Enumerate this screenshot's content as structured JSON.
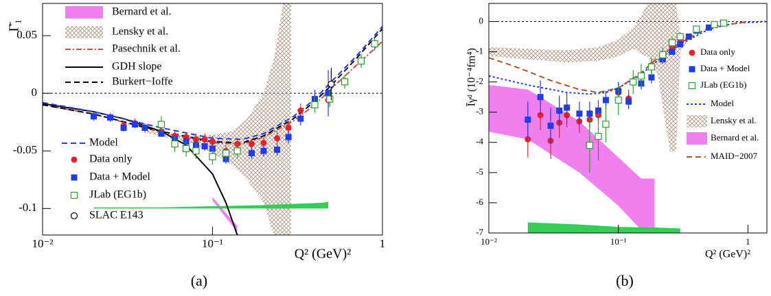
{
  "chart_data": [
    {
      "type": "scatter",
      "ylabel": "Γ̄₁",
      "xlabel": "Q² (GeV)²",
      "caption": "(a)",
      "xlog": true,
      "xlim": [
        0.01,
        1.0
      ],
      "ylim": [
        -0.123,
        0.078
      ],
      "xticks": [
        {
          "value": 0.01,
          "label": "10⁻²"
        },
        {
          "value": 0.1,
          "label": "10⁻¹"
        },
        1
      ],
      "yticks": [
        -0.1,
        -0.05,
        0,
        0.05
      ],
      "reference_line": 0,
      "series": [
        {
          "name": "Bernard et al.",
          "kind": "band",
          "color": "#f07ff0",
          "x": [
            0.1,
            0.12,
            0.14
          ],
          "upper": [
            -0.09,
            -0.104,
            -0.115
          ],
          "lower": [
            -0.093,
            -0.108,
            -0.12
          ]
        },
        {
          "name": "Lensky et al.",
          "kind": "band",
          "pattern": "hatch",
          "color": "#b08f7c",
          "x": [
            0.04,
            0.06,
            0.08,
            0.1,
            0.13,
            0.16,
            0.2,
            0.23,
            0.26,
            0.29
          ],
          "upper": [
            -0.032,
            -0.036,
            -0.037,
            -0.036,
            -0.033,
            -0.022,
            0.0,
            0.03,
            0.078,
            0.078
          ],
          "lower": [
            -0.034,
            -0.04,
            -0.045,
            -0.052,
            -0.062,
            -0.075,
            -0.095,
            -0.123,
            -0.123,
            -0.123
          ]
        },
        {
          "name": "Pasechnik et al.",
          "kind": "line",
          "dash": "dashdot",
          "color": "#c0504d",
          "x": [
            0.01,
            0.02,
            0.05,
            0.1,
            0.15,
            0.2,
            0.3,
            0.4,
            0.5,
            0.7,
            1.0
          ],
          "values": [
            -0.01,
            -0.018,
            -0.034,
            -0.043,
            -0.044,
            -0.038,
            -0.024,
            -0.01,
            0.004,
            0.024,
            0.045
          ]
        },
        {
          "name": "GDH slope",
          "kind": "line",
          "dash": "solid",
          "color": "#000000",
          "x": [
            0.01,
            0.02,
            0.03,
            0.05,
            0.07,
            0.1,
            0.12,
            0.14
          ],
          "values": [
            -0.009,
            -0.016,
            -0.022,
            -0.033,
            -0.045,
            -0.07,
            -0.095,
            -0.123
          ]
        },
        {
          "name": "Burkert−Ioffe",
          "kind": "line",
          "dash": "dashed",
          "color": "#000000",
          "x": [
            0.01,
            0.02,
            0.05,
            0.1,
            0.15,
            0.2,
            0.3,
            0.4,
            0.5,
            0.7,
            1.0
          ],
          "values": [
            -0.01,
            -0.018,
            -0.033,
            -0.042,
            -0.043,
            -0.037,
            -0.022,
            -0.007,
            0.007,
            0.03,
            0.056
          ]
        },
        {
          "name": "Model",
          "kind": "line",
          "dash": "dashed",
          "color": "#1f3ce6",
          "x": [
            0.01,
            0.02,
            0.05,
            0.1,
            0.15,
            0.2,
            0.3,
            0.4,
            0.5,
            0.7,
            1.0
          ],
          "values": [
            -0.008,
            -0.016,
            -0.03,
            -0.039,
            -0.04,
            -0.035,
            -0.02,
            -0.005,
            0.01,
            0.032,
            0.058
          ]
        },
        {
          "name": "Data only",
          "kind": "points",
          "marker": "circle",
          "color": "#e8202a",
          "x": [
            0.02,
            0.025,
            0.03,
            0.035,
            0.04,
            0.05,
            0.06,
            0.07,
            0.08,
            0.09,
            0.1,
            0.12,
            0.14,
            0.17,
            0.2,
            0.24,
            0.28,
            0.33,
            0.4,
            0.48
          ],
          "values": [
            -0.02,
            -0.021,
            -0.028,
            -0.026,
            -0.03,
            -0.033,
            -0.037,
            -0.038,
            -0.04,
            -0.04,
            -0.042,
            -0.05,
            -0.044,
            -0.044,
            -0.043,
            -0.039,
            -0.03,
            -0.015,
            -0.006,
            -0.006
          ],
          "errors": [
            0.004,
            0.004,
            0.004,
            0.004,
            0.004,
            0.004,
            0.004,
            0.004,
            0.005,
            0.005,
            0.005,
            0.005,
            0.005,
            0.005,
            0.005,
            0.006,
            0.006,
            0.006,
            0.007,
            0.007
          ]
        },
        {
          "name": "Data + Model",
          "kind": "points",
          "marker": "square",
          "color": "#1f3ce6",
          "x": [
            0.02,
            0.025,
            0.03,
            0.035,
            0.04,
            0.05,
            0.06,
            0.07,
            0.08,
            0.09,
            0.1,
            0.12,
            0.14,
            0.17,
            0.2,
            0.24,
            0.28,
            0.33,
            0.4,
            0.48
          ],
          "values": [
            -0.02,
            -0.021,
            -0.03,
            -0.027,
            -0.03,
            -0.035,
            -0.04,
            -0.042,
            -0.045,
            -0.046,
            -0.048,
            -0.057,
            -0.05,
            -0.052,
            -0.05,
            -0.049,
            -0.038,
            -0.022,
            -0.005,
            0.0
          ],
          "errors": [
            0.003,
            0.003,
            0.003,
            0.003,
            0.003,
            0.003,
            0.004,
            0.004,
            0.004,
            0.004,
            0.004,
            0.004,
            0.004,
            0.005,
            0.005,
            0.005,
            0.005,
            0.006,
            0.008,
            0.02
          ]
        },
        {
          "name": "JLab (EG1b)",
          "kind": "points",
          "marker": "open-square",
          "color": "#2aa02a",
          "x": [
            0.05,
            0.06,
            0.07,
            0.08,
            0.1,
            0.12,
            0.14,
            0.4,
            0.49,
            0.6,
            0.75,
            0.9
          ],
          "values": [
            -0.027,
            -0.044,
            -0.048,
            -0.05,
            -0.055,
            -0.052,
            -0.05,
            -0.01,
            -0.005,
            0.01,
            0.028,
            0.043
          ],
          "errors": [
            0.007,
            0.007,
            0.007,
            0.007,
            0.007,
            0.007,
            0.007,
            0.007,
            0.007,
            0.006,
            0.006,
            0.006
          ]
        },
        {
          "name": "SLAC E143",
          "kind": "points",
          "marker": "open-circle",
          "color": "#000000",
          "x": [
            0.5
          ],
          "values": [
            0.008
          ],
          "errors": [
            0.014
          ]
        },
        {
          "kind": "band",
          "color": "#33cc55",
          "x": [
            0.02,
            0.05,
            0.1,
            0.2,
            0.45,
            0.48
          ],
          "upper": [
            -0.099,
            -0.099,
            -0.098,
            -0.097,
            -0.095,
            -0.094
          ],
          "lower": [
            -0.1,
            -0.1,
            -0.1,
            -0.1,
            -0.1,
            -0.1
          ]
        }
      ]
    },
    {
      "type": "scatter",
      "ylabel": "Īγᵈ (10⁻⁴fm⁴)",
      "xlabel": "Q² (GeV)²",
      "caption": "(b)",
      "xlog": true,
      "xlim": [
        0.01,
        1.4
      ],
      "ylim": [
        -7,
        0.6
      ],
      "xticks": [
        {
          "value": 0.01,
          "label": "10⁻²"
        },
        {
          "value": 0.1,
          "label": "10⁻¹"
        },
        1
      ],
      "yticks": [
        -7,
        -6,
        -5,
        -4,
        -3,
        -2,
        -1,
        0
      ],
      "reference_line": 0,
      "series": [
        {
          "name": "Data only",
          "kind": "points",
          "marker": "circle",
          "color": "#e8202a",
          "x": [
            0.02,
            0.025,
            0.03,
            0.035,
            0.04,
            0.05,
            0.06,
            0.07,
            0.1,
            0.12,
            0.18,
            0.22,
            0.26,
            0.3
          ],
          "values": [
            -3.9,
            -3.1,
            -3.95,
            -3.35,
            -3.1,
            -3.3,
            -3.25,
            -3.1,
            -2.35,
            -2.55,
            -1.45,
            -1.1,
            -0.85,
            -0.6
          ],
          "errors": [
            0.6,
            0.5,
            0.6,
            0.5,
            0.4,
            0.4,
            0.35,
            0.3,
            0.3,
            0.3,
            0.2,
            0.2,
            0.15,
            0.1
          ]
        },
        {
          "name": "Data + Model",
          "kind": "points",
          "marker": "square",
          "color": "#1f3ce6",
          "x": [
            0.02,
            0.025,
            0.03,
            0.035,
            0.04,
            0.05,
            0.06,
            0.07,
            0.08,
            0.1,
            0.12,
            0.15,
            0.18,
            0.22,
            0.26,
            0.3,
            0.35,
            0.4,
            0.5
          ],
          "values": [
            -3.25,
            -2.5,
            -3.45,
            -2.95,
            -2.85,
            -3.05,
            -3.05,
            -2.95,
            -2.6,
            -2.3,
            -2.65,
            -2.05,
            -1.85,
            -1.25,
            -1.0,
            -0.75,
            -0.5,
            -0.3,
            -0.2
          ],
          "errors": [
            0.6,
            0.55,
            0.6,
            0.5,
            0.5,
            0.4,
            0.4,
            0.35,
            0.3,
            0.3,
            0.25,
            0.2,
            0.2,
            0.15,
            0.1,
            0.1,
            0.1,
            0.1,
            0.1
          ]
        },
        {
          "name": "JLab (EG1b)",
          "kind": "points",
          "marker": "open-square",
          "color": "#2aa02a",
          "x": [
            0.06,
            0.07,
            0.08,
            0.1,
            0.13,
            0.15,
            0.18,
            0.22,
            0.26,
            0.3,
            0.4,
            0.55,
            0.65
          ],
          "values": [
            -4.1,
            -3.8,
            -3.4,
            -2.6,
            -2.0,
            -1.8,
            -1.5,
            -1.1,
            -0.7,
            -0.5,
            -0.25,
            -0.1,
            -0.05
          ],
          "errors": [
            0.9,
            0.8,
            0.6,
            0.5,
            0.4,
            0.4,
            0.3,
            0.25,
            0.2,
            0.15,
            0.1,
            0.05,
            0.05
          ]
        },
        {
          "name": "Model",
          "kind": "line",
          "dash": "dotted",
          "color": "#1f3ce6",
          "x": [
            0.01,
            0.02,
            0.04,
            0.06,
            0.08,
            0.1,
            0.15,
            0.2,
            0.3,
            0.5,
            0.8,
            1.4
          ],
          "values": [
            -1.8,
            -2.1,
            -2.35,
            -2.4,
            -2.35,
            -2.2,
            -1.75,
            -1.3,
            -0.75,
            -0.25,
            -0.05,
            0
          ]
        },
        {
          "name": "Lensky et al.",
          "kind": "band",
          "pattern": "hatch",
          "color": "#b08f7c",
          "x": [
            0.01,
            0.02,
            0.04,
            0.07,
            0.1,
            0.13,
            0.17,
            0.2,
            0.22,
            0.25,
            0.28,
            0.3,
            0.35
          ],
          "upper": [
            -0.85,
            -0.9,
            -0.95,
            -0.85,
            -0.6,
            -0.2,
            0.6,
            0.6,
            0.6,
            0.6,
            0.6,
            -0.5,
            -0.5
          ],
          "lower": [
            -1.15,
            -1.25,
            -1.35,
            -1.3,
            -1.15,
            -0.9,
            -1.2,
            -1.7,
            -2.8,
            -4.3,
            -4.3,
            -1.0,
            -0.6
          ]
        },
        {
          "name": "Bernard et al.",
          "kind": "band",
          "color": "#f07ff0",
          "x": [
            0.01,
            0.02,
            0.05,
            0.1,
            0.15,
            0.19
          ],
          "upper": [
            -2.1,
            -2.25,
            -3.3,
            -4.5,
            -5.2,
            -5.2
          ],
          "lower": [
            -3.65,
            -3.9,
            -5.0,
            -6.1,
            -6.9,
            -6.95
          ]
        },
        {
          "name": "MAID−2007",
          "kind": "line",
          "dash": "dashed",
          "color": "#b5502a",
          "x": [
            0.01,
            0.015,
            0.02,
            0.03,
            0.05,
            0.07,
            0.1,
            0.15,
            0.2,
            0.3,
            0.5,
            1.0
          ],
          "values": [
            -1.2,
            -1.45,
            -1.65,
            -1.95,
            -2.25,
            -2.35,
            -2.2,
            -1.7,
            -1.2,
            -0.7,
            -0.2,
            0
          ]
        },
        {
          "kind": "band",
          "color": "#33cc55",
          "x": [
            0.02,
            0.05,
            0.1,
            0.2,
            0.3
          ],
          "upper": [
            -6.65,
            -6.72,
            -6.8,
            -6.82,
            -6.85
          ],
          "lower": [
            -7,
            -7,
            -7,
            -7,
            -7
          ]
        }
      ]
    }
  ]
}
